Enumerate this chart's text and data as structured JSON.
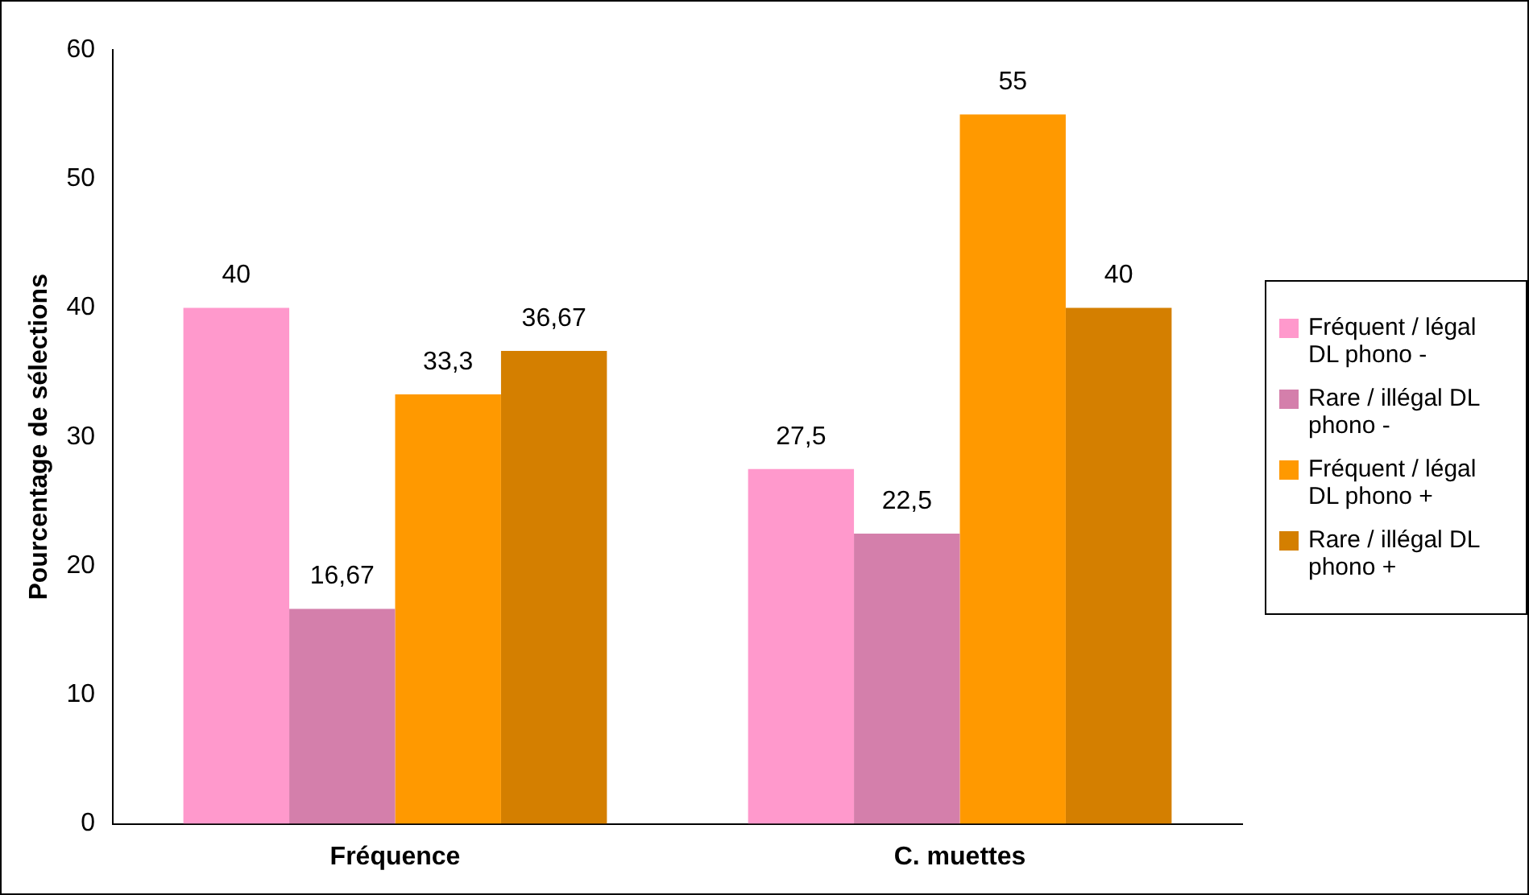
{
  "chart_data": {
    "type": "bar",
    "ylabel": "Pourcentage de sélections",
    "categories": [
      "Fréquence",
      "C. muettes"
    ],
    "series": [
      {
        "name": "Fréquent / légal DL phono -",
        "color": "#ff99cc",
        "values": [
          40,
          27.5
        ],
        "value_labels": [
          "40",
          "27,5"
        ]
      },
      {
        "name": "Rare / illégal DL phono -",
        "color": "#d47fab",
        "values": [
          16.67,
          22.5
        ],
        "value_labels": [
          "16,67",
          "22,5"
        ]
      },
      {
        "name": "Fréquent / légal DL phono +",
        "color": "#ff9900",
        "values": [
          33.3,
          55
        ],
        "value_labels": [
          "33,3",
          "55"
        ]
      },
      {
        "name": "Rare / illégal DL phono +",
        "color": "#d47f00",
        "values": [
          36.67,
          40
        ],
        "value_labels": [
          "36,67",
          "40"
        ]
      }
    ],
    "ylim": [
      0,
      60
    ],
    "yticks": [
      0,
      10,
      20,
      30,
      40,
      50,
      60
    ],
    "grid": false,
    "legend": "right"
  }
}
